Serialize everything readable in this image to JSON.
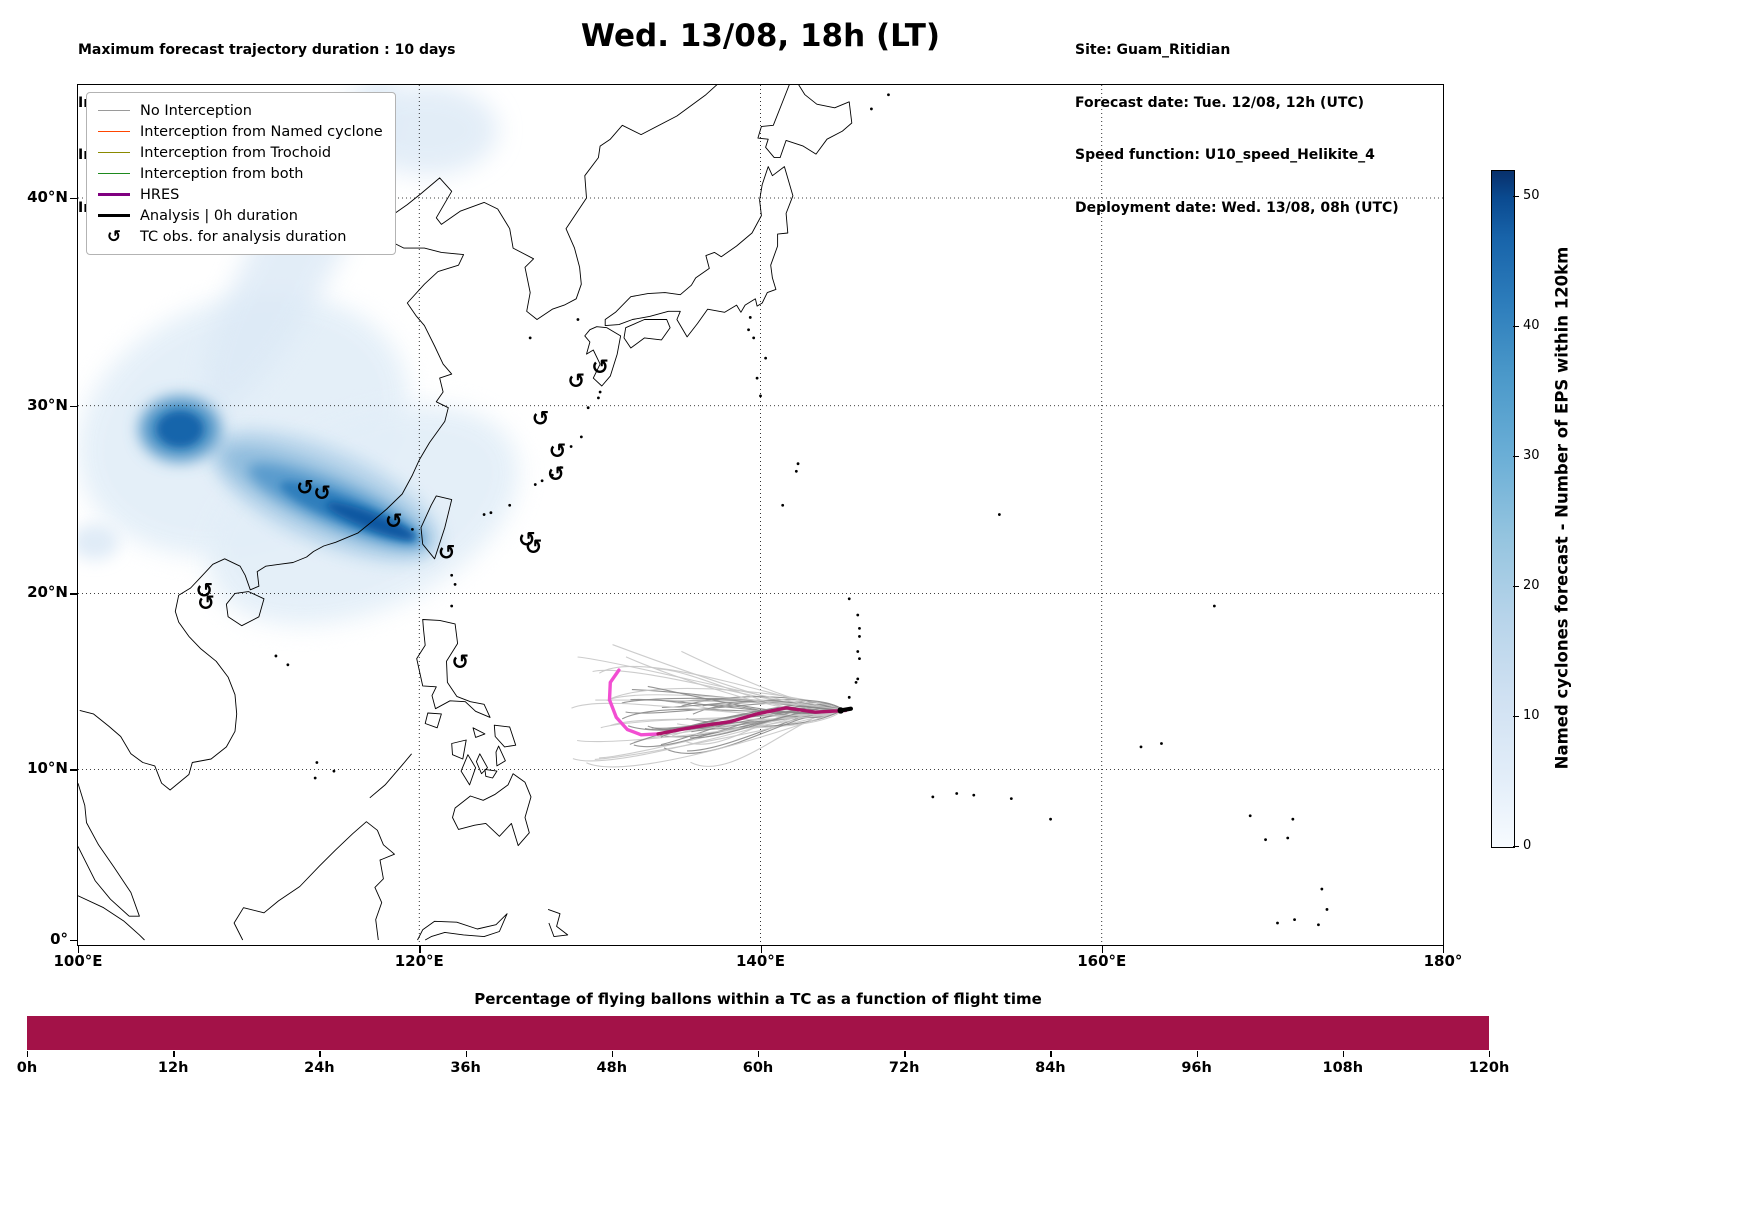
{
  "header": {
    "left_lines": [
      "Maximum forecast trajectory duration : 10 days",
      "Intercept distance: 300km",
      "Intercept RW2 (EPS):  30km/h2",
      "Intercept RW2 (HRES): 30km/h2"
    ],
    "title": "Wed. 13/08, 18h (LT)",
    "right_lines": [
      "Site: Guam_Ritidian",
      "Forecast date: Tue. 12/08, 12h (UTC)",
      "Speed function: U10_speed_Helikite_4",
      "Deployment date: Wed. 13/08, 08h (UTC)"
    ]
  },
  "legend": {
    "items": [
      {
        "label": "No Interception",
        "color": "#9a9a9a",
        "style": "thin"
      },
      {
        "label": "Interception from Named cyclone",
        "color": "#ff4500",
        "style": "thin"
      },
      {
        "label": "Interception from Trochoid",
        "color": "#8a8a00",
        "style": "thin"
      },
      {
        "label": "Interception from both",
        "color": "#1e8a1e",
        "style": "thin"
      },
      {
        "label": "HRES",
        "color": "#800080",
        "style": "thick"
      },
      {
        "label": "Analysis | 0h duration",
        "color": "#000000",
        "style": "thick"
      },
      {
        "label": "TC obs. for analysis duration",
        "color": "#000000",
        "style": "symbol",
        "symbol": "↺"
      }
    ]
  },
  "map_axes": {
    "x_ticks": [
      {
        "label": "100°E",
        "lon": 100
      },
      {
        "label": "120°E",
        "lon": 120
      },
      {
        "label": "140°E",
        "lon": 140
      },
      {
        "label": "160°E",
        "lon": 160
      },
      {
        "label": "180°",
        "lon": 180
      }
    ],
    "y_ticks": [
      {
        "label": "0°",
        "lat": 0
      },
      {
        "label": "10°N",
        "lat": 10
      },
      {
        "label": "20°N",
        "lat": 20
      },
      {
        "label": "30°N",
        "lat": 30
      },
      {
        "label": "40°N",
        "lat": 40
      }
    ]
  },
  "colorbar": {
    "label": "Named cyclones forecast - Number of EPS within 120km",
    "ticks": [
      0,
      10,
      20,
      30,
      40,
      50
    ],
    "vmax": 52,
    "colormap": "Blues"
  },
  "bottom_chart": {
    "title": "Percentage of flying ballons within a TC as a function of flight time",
    "ticks": [
      "0h",
      "12h",
      "24h",
      "36h",
      "48h",
      "60h",
      "72h",
      "84h",
      "96h",
      "108h",
      "120h"
    ],
    "bar_color": "#a31248"
  },
  "chart_data": [
    {
      "id": "trajectory_map",
      "type": "line",
      "title": "Wed. 13/08, 18h (LT)",
      "projection": "Mercator",
      "xlim": [
        100,
        180
      ],
      "ylim": [
        0,
        45.2
      ],
      "x_ticks": [
        "100°E",
        "120°E",
        "140°E",
        "160°E",
        "180°"
      ],
      "y_ticks": [
        "0°",
        "10°N",
        "20°N",
        "30°N",
        "40°N"
      ],
      "grid": true,
      "legend_position": "upper left",
      "series": [
        {
          "name": "HRES",
          "type": "trajectory",
          "colors": [
            "#ab1368",
            "#f24ed2"
          ],
          "points": [
            [
              145.0,
              13.4
            ],
            [
              143.2,
              13.3
            ],
            [
              141.5,
              13.55
            ],
            [
              139.8,
              13.2
            ],
            [
              138.2,
              12.75
            ],
            [
              136.8,
              12.55
            ],
            [
              135.3,
              12.3
            ],
            [
              134.0,
              12.05
            ],
            [
              133.0,
              12.0
            ],
            [
              132.2,
              12.3
            ],
            [
              131.55,
              13.0
            ],
            [
              131.15,
              14.0
            ],
            [
              131.2,
              15.0
            ],
            [
              131.7,
              15.7
            ]
          ]
        },
        {
          "name": "Analysis | 0h duration",
          "type": "trajectory",
          "color": "#000000",
          "points": [
            [
              145.3,
              13.5
            ],
            [
              144.7,
              13.4
            ]
          ]
        },
        {
          "name": "No Interception (EPS ensemble)",
          "type": "trajectory_bundle",
          "colors": [
            "#c6c6c6",
            "#8a8a8a"
          ],
          "count_estimate": 52,
          "origin": [
            144.8,
            13.45
          ],
          "end_lon_range": [
            128.5,
            136.5
          ],
          "end_lat_range": [
            9.8,
            17.5
          ]
        }
      ],
      "tc_obs": [
        [
          130.6,
          31.9
        ],
        [
          129.2,
          31.2
        ],
        [
          127.1,
          29.3
        ],
        [
          128.1,
          27.6
        ],
        [
          128.0,
          26.4
        ],
        [
          126.3,
          22.9
        ],
        [
          126.7,
          22.5
        ],
        [
          121.6,
          22.2
        ],
        [
          118.5,
          23.9
        ],
        [
          113.3,
          25.7
        ],
        [
          114.3,
          25.4
        ],
        [
          107.4,
          20.1
        ],
        [
          107.5,
          19.4
        ],
        [
          122.4,
          16.1
        ]
      ],
      "density_field": {
        "name": "Named cyclones forecast - Number of EPS within 120km",
        "colormap": "Blues",
        "vmax": 52,
        "core_band": [
          [
            109,
            27.5
          ],
          [
            120,
            23
          ]
        ],
        "description": "Blue shaded EPS named-cyclone density: elongated dark band from ~(109E,27.5N) to ~(120E,23N) over SE China / Taiwan Strait, round darker blob near (106E,29N), light halo (101-124E, 20-34N), light streak rising to ~(118E,45N)"
      }
    },
    {
      "id": "colorbar",
      "type": "heatmap",
      "label": "Named cyclones forecast - Number of EPS within 120km",
      "ticks": [
        0,
        10,
        20,
        30,
        40,
        50
      ],
      "range": [
        0,
        52
      ],
      "colormap": "Blues"
    },
    {
      "id": "balloon_tc_percentage",
      "type": "bar",
      "title": "Percentage of flying ballons within a TC as a function of flight time",
      "categories": [
        "0h",
        "12h",
        "24h",
        "36h",
        "48h",
        "60h",
        "72h",
        "84h",
        "96h",
        "108h",
        "120h"
      ],
      "x_hours": [
        0,
        120
      ],
      "values": [
        100,
        100
      ],
      "bar_color": "#a31248",
      "note": "single continuous full-height bar spanning 0h-120h; y-axis unlabeled in figure"
    }
  ]
}
